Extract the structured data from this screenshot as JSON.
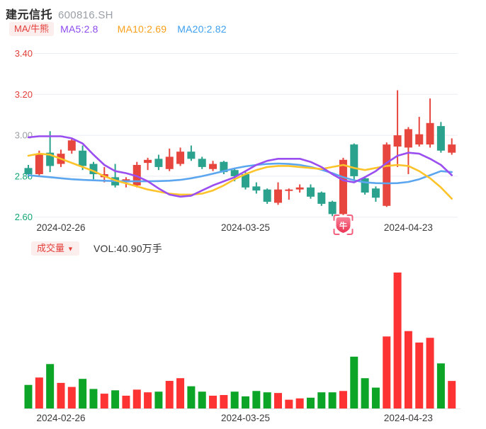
{
  "header": {
    "title": "建元信托",
    "code": "600816.SH",
    "ma_badge": "MA/牛熊",
    "ma5": "MA5:2.8",
    "ma10": "MA10:2.69",
    "ma20": "MA20:2.82"
  },
  "volume_header": {
    "badge": "成交量",
    "arrow": "▼",
    "vol": "VOL:40.90万手"
  },
  "colors": {
    "candle_up": "#e7463e",
    "candle_down": "#2aa28d",
    "volume_up": "#fd3232",
    "volume_down": "#0da528",
    "ma5_line": "#9a4ef0",
    "ma10_line": "#fcc32a",
    "ma20_line": "#5ba6ee",
    "grid": "#e9eef4",
    "axis_red": "#e23e39",
    "axis_gray": "#9aa0a6",
    "axis_green": "#0fa573",
    "tick_text": "#3a3a3a",
    "vol_baseline": "#e3e3e3",
    "bull_grad_top": "#fa8097",
    "bull_grad_bottom": "#ea3352",
    "bull_bracket": "#f2607e",
    "bull_text": "#ffffff"
  },
  "chart_data": {
    "type": "candlestick+volume",
    "title": "建元信托 600816.SH",
    "ylabel": "price (CNY)",
    "y_range": [
      2.6,
      3.4
    ],
    "grid": true,
    "y_ticks": [
      {
        "value": "3.40",
        "color": "#e23e39"
      },
      {
        "value": "3.20",
        "color": "#e23e39"
      },
      {
        "value": "3.00",
        "color": "#9aa0a6"
      },
      {
        "value": "2.80",
        "color": "#0fa573"
      },
      {
        "value": "2.60",
        "color": "#0fa573"
      }
    ],
    "x_ticks": [
      {
        "index": 3,
        "label": "2024-02-26"
      },
      {
        "index": 20,
        "label": "2024-03-25"
      },
      {
        "index": 35,
        "label": "2024-04-23"
      }
    ],
    "volume_unit": "万手",
    "latest_volume": 40.9,
    "bull_marker_index": 29,
    "bull_marker_label": "牛",
    "candle_columns": [
      "open",
      "close",
      "high",
      "low",
      "volume_wan",
      "volume_color"
    ],
    "candles": [
      [
        2.84,
        2.81,
        2.855,
        2.795,
        35,
        "g"
      ],
      [
        2.81,
        2.91,
        2.925,
        2.8,
        46,
        "r"
      ],
      [
        2.915,
        2.85,
        3.02,
        2.82,
        66,
        "g"
      ],
      [
        2.86,
        2.91,
        2.93,
        2.845,
        38,
        "r"
      ],
      [
        2.925,
        2.975,
        2.985,
        2.91,
        32,
        "r"
      ],
      [
        2.925,
        2.85,
        2.95,
        2.83,
        44,
        "g"
      ],
      [
        2.86,
        2.81,
        2.87,
        2.785,
        29,
        "g"
      ],
      [
        2.795,
        2.81,
        2.845,
        2.77,
        22,
        "r"
      ],
      [
        2.795,
        2.755,
        2.86,
        2.745,
        27,
        "g"
      ],
      [
        2.77,
        2.785,
        2.795,
        2.745,
        19,
        "r"
      ],
      [
        2.755,
        2.855,
        2.87,
        2.745,
        28,
        "r"
      ],
      [
        2.865,
        2.88,
        2.89,
        2.83,
        24,
        "r"
      ],
      [
        2.885,
        2.845,
        2.905,
        2.83,
        25,
        "g"
      ],
      [
        2.835,
        2.895,
        2.935,
        2.825,
        41,
        "r"
      ],
      [
        2.86,
        2.92,
        2.94,
        2.85,
        45,
        "r"
      ],
      [
        2.92,
        2.885,
        2.95,
        2.875,
        33,
        "g"
      ],
      [
        2.885,
        2.845,
        2.895,
        2.835,
        25,
        "g"
      ],
      [
        2.835,
        2.86,
        2.875,
        2.825,
        19,
        "r"
      ],
      [
        2.87,
        2.82,
        2.875,
        2.81,
        20,
        "r"
      ],
      [
        2.83,
        2.8,
        2.84,
        2.775,
        25,
        "g"
      ],
      [
        2.81,
        2.745,
        2.82,
        2.735,
        18,
        "g"
      ],
      [
        2.75,
        2.73,
        2.77,
        2.715,
        26,
        "g"
      ],
      [
        2.735,
        2.675,
        2.74,
        2.665,
        24,
        "g"
      ],
      [
        2.67,
        2.735,
        2.77,
        2.66,
        23,
        "r"
      ],
      [
        2.73,
        2.735,
        2.74,
        2.685,
        13,
        "r"
      ],
      [
        2.735,
        2.745,
        2.76,
        2.72,
        15,
        "r"
      ],
      [
        2.745,
        2.7,
        2.76,
        2.69,
        16,
        "g"
      ],
      [
        2.72,
        2.665,
        2.725,
        2.655,
        24,
        "g"
      ],
      [
        2.675,
        2.615,
        2.68,
        2.605,
        24,
        "g"
      ],
      [
        2.615,
        2.88,
        2.89,
        2.61,
        26,
        "r"
      ],
      [
        2.955,
        2.8,
        2.96,
        2.775,
        77,
        "g"
      ],
      [
        2.79,
        2.72,
        2.8,
        2.71,
        45,
        "g"
      ],
      [
        2.74,
        2.695,
        2.75,
        2.675,
        31,
        "g"
      ],
      [
        2.655,
        2.955,
        2.965,
        2.65,
        107,
        "r"
      ],
      [
        2.945,
        3.0,
        3.22,
        2.845,
        202,
        "r"
      ],
      [
        2.94,
        3.03,
        3.04,
        2.81,
        115,
        "r"
      ],
      [
        2.955,
        3.005,
        3.09,
        2.945,
        98,
        "r"
      ],
      [
        2.955,
        3.06,
        3.18,
        2.94,
        105,
        "r"
      ],
      [
        3.045,
        2.925,
        3.065,
        2.915,
        67,
        "g"
      ],
      [
        2.915,
        2.955,
        2.985,
        2.905,
        40.9,
        "r"
      ]
    ],
    "series": [
      {
        "name": "MA5",
        "color_role": "ma5_line",
        "values": [
          2.99,
          2.995,
          2.995,
          2.995,
          2.985,
          2.96,
          2.905,
          2.855,
          2.825,
          2.815,
          2.8,
          2.775,
          2.74,
          2.71,
          2.7,
          2.705,
          2.73,
          2.755,
          2.775,
          2.795,
          2.825,
          2.855,
          2.875,
          2.885,
          2.885,
          2.885,
          2.87,
          2.845,
          2.81,
          2.78,
          2.77,
          2.795,
          2.825,
          2.865,
          2.9,
          2.915,
          2.91,
          2.885,
          2.855,
          2.805
        ]
      },
      {
        "name": "MA10",
        "color_role": "ma10_line",
        "values": [
          2.9,
          2.91,
          2.905,
          2.885,
          2.865,
          2.845,
          2.825,
          2.8,
          2.78,
          2.765,
          2.75,
          2.735,
          2.725,
          2.715,
          2.71,
          2.71,
          2.715,
          2.73,
          2.755,
          2.785,
          2.81,
          2.83,
          2.845,
          2.85,
          2.85,
          2.845,
          2.84,
          2.835,
          2.845,
          2.855,
          2.84,
          2.83,
          2.84,
          2.85,
          2.855,
          2.85,
          2.825,
          2.79,
          2.745,
          2.69
        ]
      },
      {
        "name": "MA20",
        "color_role": "ma20_line",
        "values": [
          2.805,
          2.8,
          2.795,
          2.79,
          2.785,
          2.782,
          2.78,
          2.778,
          2.776,
          2.775,
          2.775,
          2.775,
          2.776,
          2.778,
          2.782,
          2.79,
          2.8,
          2.812,
          2.825,
          2.838,
          2.848,
          2.855,
          2.86,
          2.862,
          2.86,
          2.855,
          2.845,
          2.832,
          2.815,
          2.795,
          2.78,
          2.77,
          2.766,
          2.765,
          2.766,
          2.772,
          2.785,
          2.805,
          2.825,
          2.82
        ]
      }
    ]
  }
}
